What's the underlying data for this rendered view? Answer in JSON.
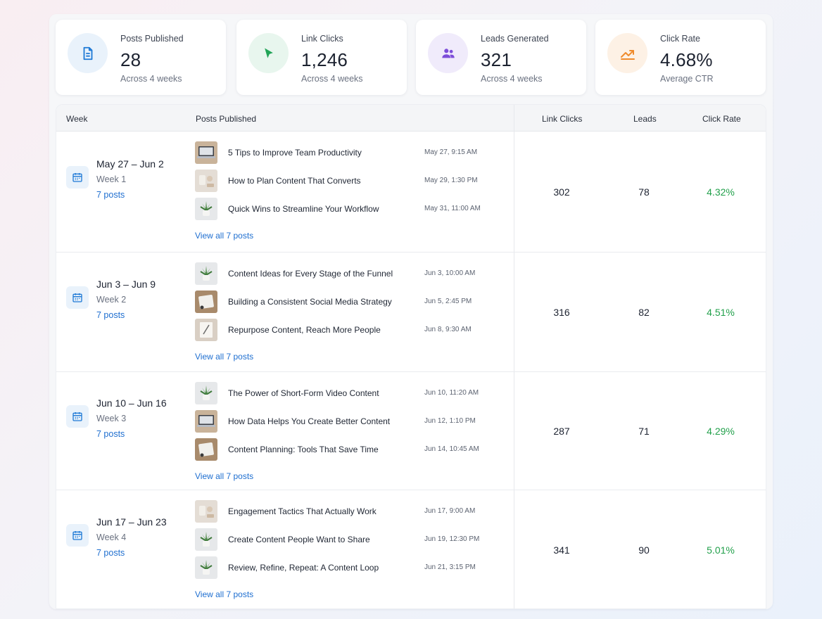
{
  "stats": [
    {
      "label": "Posts Published",
      "value": "28",
      "sub": "Across 4 weeks",
      "icon": "document-icon",
      "color": "#1f7ad6",
      "bg": "#e9f2fb"
    },
    {
      "label": "Link Clicks",
      "value": "1,246",
      "sub": "Across 4 weeks",
      "icon": "cursor-icon",
      "color": "#21a457",
      "bg": "#e8f6ee"
    },
    {
      "label": "Leads Generated",
      "value": "321",
      "sub": "Across 4 weeks",
      "icon": "users-icon",
      "color": "#7d4ed9",
      "bg": "#f0ebfb"
    },
    {
      "label": "Click Rate",
      "value": "4.68%",
      "sub": "Average CTR",
      "icon": "trend-up-icon",
      "color": "#ef8b2c",
      "bg": "#fdf1e5"
    }
  ],
  "table": {
    "headers": {
      "week": "Week",
      "posts": "Posts Published",
      "clicks": "Link Clicks",
      "leads": "Leads",
      "rate": "Click Rate"
    },
    "rows": [
      {
        "range": "May 27 – Jun 2",
        "week": "Week 1",
        "count": "7 posts",
        "view_all": "View all 7 posts",
        "clicks": "302",
        "leads": "78",
        "rate": "4.32%",
        "posts": [
          {
            "title": "5 Tips to Improve Team Productivity",
            "date": "May 27, 9:15 AM",
            "thumb": "laptop"
          },
          {
            "title": "How to Plan Content That Converts",
            "date": "May 29, 1:30 PM",
            "thumb": "desk"
          },
          {
            "title": "Quick Wins to Streamline Your Workflow",
            "date": "May 31, 11:00 AM",
            "thumb": "plant"
          }
        ]
      },
      {
        "range": "Jun 3 – Jun 9",
        "week": "Week 2",
        "count": "7 posts",
        "view_all": "View all 7 posts",
        "clicks": "316",
        "leads": "82",
        "rate": "4.51%",
        "posts": [
          {
            "title": "Content Ideas for Every Stage of the Funnel",
            "date": "Jun 3, 10:00 AM",
            "thumb": "plant"
          },
          {
            "title": "Building a Consistent Social Media Strategy",
            "date": "Jun 5, 2:45 PM",
            "thumb": "paper"
          },
          {
            "title": "Repurpose Content, Reach More People",
            "date": "Jun 8, 9:30 AM",
            "thumb": "notebook"
          }
        ]
      },
      {
        "range": "Jun 10 – Jun 16",
        "week": "Week 3",
        "count": "7 posts",
        "view_all": "View all 7 posts",
        "clicks": "287",
        "leads": "71",
        "rate": "4.29%",
        "posts": [
          {
            "title": "The Power of Short-Form Video Content",
            "date": "Jun 10, 11:20 AM",
            "thumb": "plant"
          },
          {
            "title": "How Data Helps You Create Better Content",
            "date": "Jun 12, 1:10 PM",
            "thumb": "laptop"
          },
          {
            "title": "Content Planning: Tools That Save Time",
            "date": "Jun 14, 10:45 AM",
            "thumb": "paper"
          }
        ]
      },
      {
        "range": "Jun 17 – Jun 23",
        "week": "Week 4",
        "count": "7 posts",
        "view_all": "View all 7 posts",
        "clicks": "341",
        "leads": "90",
        "rate": "5.01%",
        "posts": [
          {
            "title": "Engagement Tactics That Actually Work",
            "date": "Jun 17, 9:00 AM",
            "thumb": "desk"
          },
          {
            "title": "Create Content People Want to Share",
            "date": "Jun 19, 12:30 PM",
            "thumb": "plant"
          },
          {
            "title": "Review, Refine, Repeat: A Content Loop",
            "date": "Jun 21, 3:15 PM",
            "thumb": "plant"
          }
        ]
      }
    ]
  },
  "colors": {
    "link": "#1f6fd0",
    "positive": "#22a04b",
    "calendar": "#1f7ad6"
  }
}
